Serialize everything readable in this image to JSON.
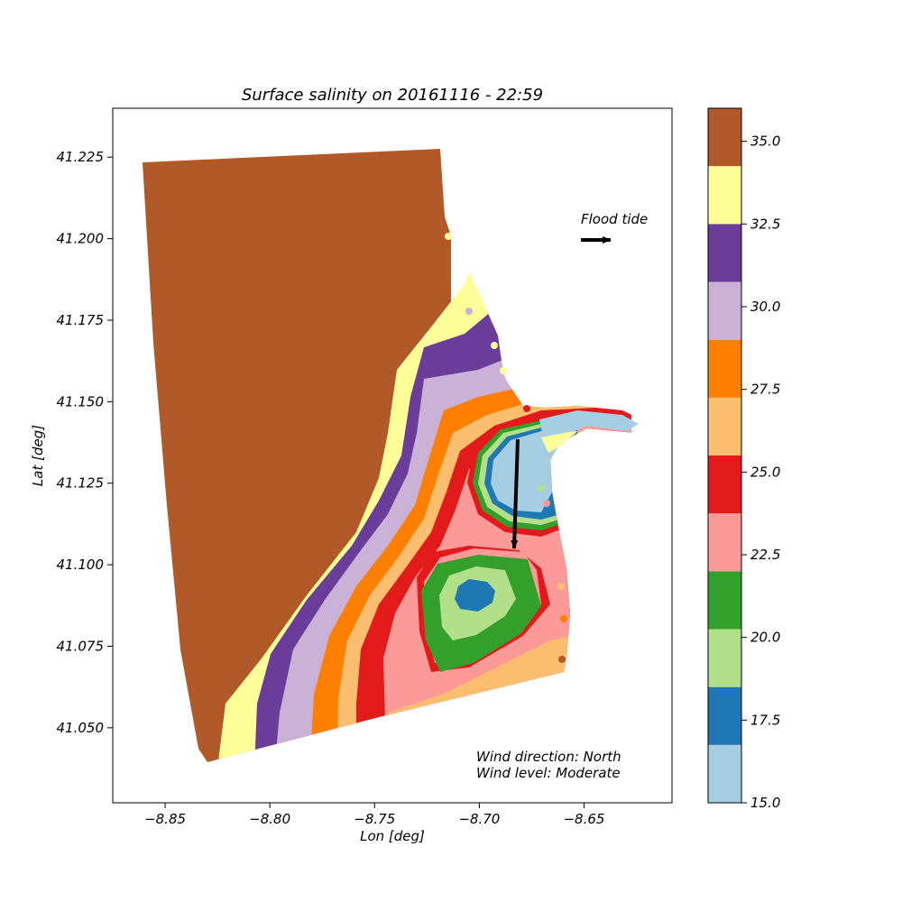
{
  "chart_data": {
    "type": "heatmap",
    "title": "Surface salinity on 20161116 - 22:59",
    "xlabel": "Lon [deg]",
    "ylabel": "Lat [deg]",
    "xlim": [
      -8.875,
      -8.608
    ],
    "ylim": [
      41.027,
      41.24
    ],
    "xticks": [
      -8.85,
      -8.8,
      -8.75,
      -8.7,
      -8.65
    ],
    "xtick_labels": [
      "−8.85",
      "−8.80",
      "−8.75",
      "−8.70",
      "−8.65"
    ],
    "yticks": [
      41.05,
      41.075,
      41.1,
      41.125,
      41.15,
      41.175,
      41.2,
      41.225
    ],
    "ytick_labels": [
      "41.050",
      "41.075",
      "41.100",
      "41.125",
      "41.150",
      "41.175",
      "41.200",
      "41.225"
    ],
    "grid": false,
    "colorbar": {
      "levels": [
        15.0,
        16.75,
        18.5,
        20.25,
        22.0,
        23.75,
        25.5,
        27.25,
        29.0,
        30.75,
        32.5,
        34.25,
        36.0
      ],
      "colors": [
        "#a6cee3",
        "#1f78b4",
        "#b2df8a",
        "#33a02c",
        "#fb9a99",
        "#e31a1c",
        "#fdbf6f",
        "#ff7f00",
        "#cab2d6",
        "#6a3d9a",
        "#ffff99",
        "#b15928"
      ],
      "ticks": [
        15.0,
        17.5,
        20.0,
        22.5,
        25.0,
        27.5,
        30.0,
        32.5,
        35.0
      ],
      "tick_labels": [
        "15.0",
        "17.5",
        "20.0",
        "22.5",
        "25.0",
        "27.5",
        "30.0",
        "32.5",
        "35.0"
      ]
    },
    "annotations": {
      "flood_tide": "Flood tide",
      "wind_direction": "Wind direction: North",
      "wind_level": "Wind level: Moderate"
    },
    "regions": [
      {
        "name": "ocean",
        "salinity": 35.0,
        "color": "#b15928"
      },
      {
        "name": "coastal-band",
        "salinity": 33.5,
        "color": "#ffff99"
      },
      {
        "name": "plume-outer",
        "salinity": 31.5,
        "color": "#6a3d9a"
      },
      {
        "name": "plume",
        "salinity": 30.0,
        "color": "#cab2d6"
      },
      {
        "name": "plume",
        "salinity": 28.0,
        "color": "#ff7f00"
      },
      {
        "name": "plume",
        "salinity": 26.5,
        "color": "#fdbf6f"
      },
      {
        "name": "plume",
        "salinity": 24.5,
        "color": "#e31a1c"
      },
      {
        "name": "plume-core",
        "salinity": 23.0,
        "color": "#fb9a99"
      },
      {
        "name": "estuary",
        "salinity": 15.5,
        "color": "#a6cee3"
      }
    ],
    "arrows": {
      "flood_tide": {
        "direction": "east"
      },
      "wind": {
        "direction": "south"
      }
    }
  }
}
